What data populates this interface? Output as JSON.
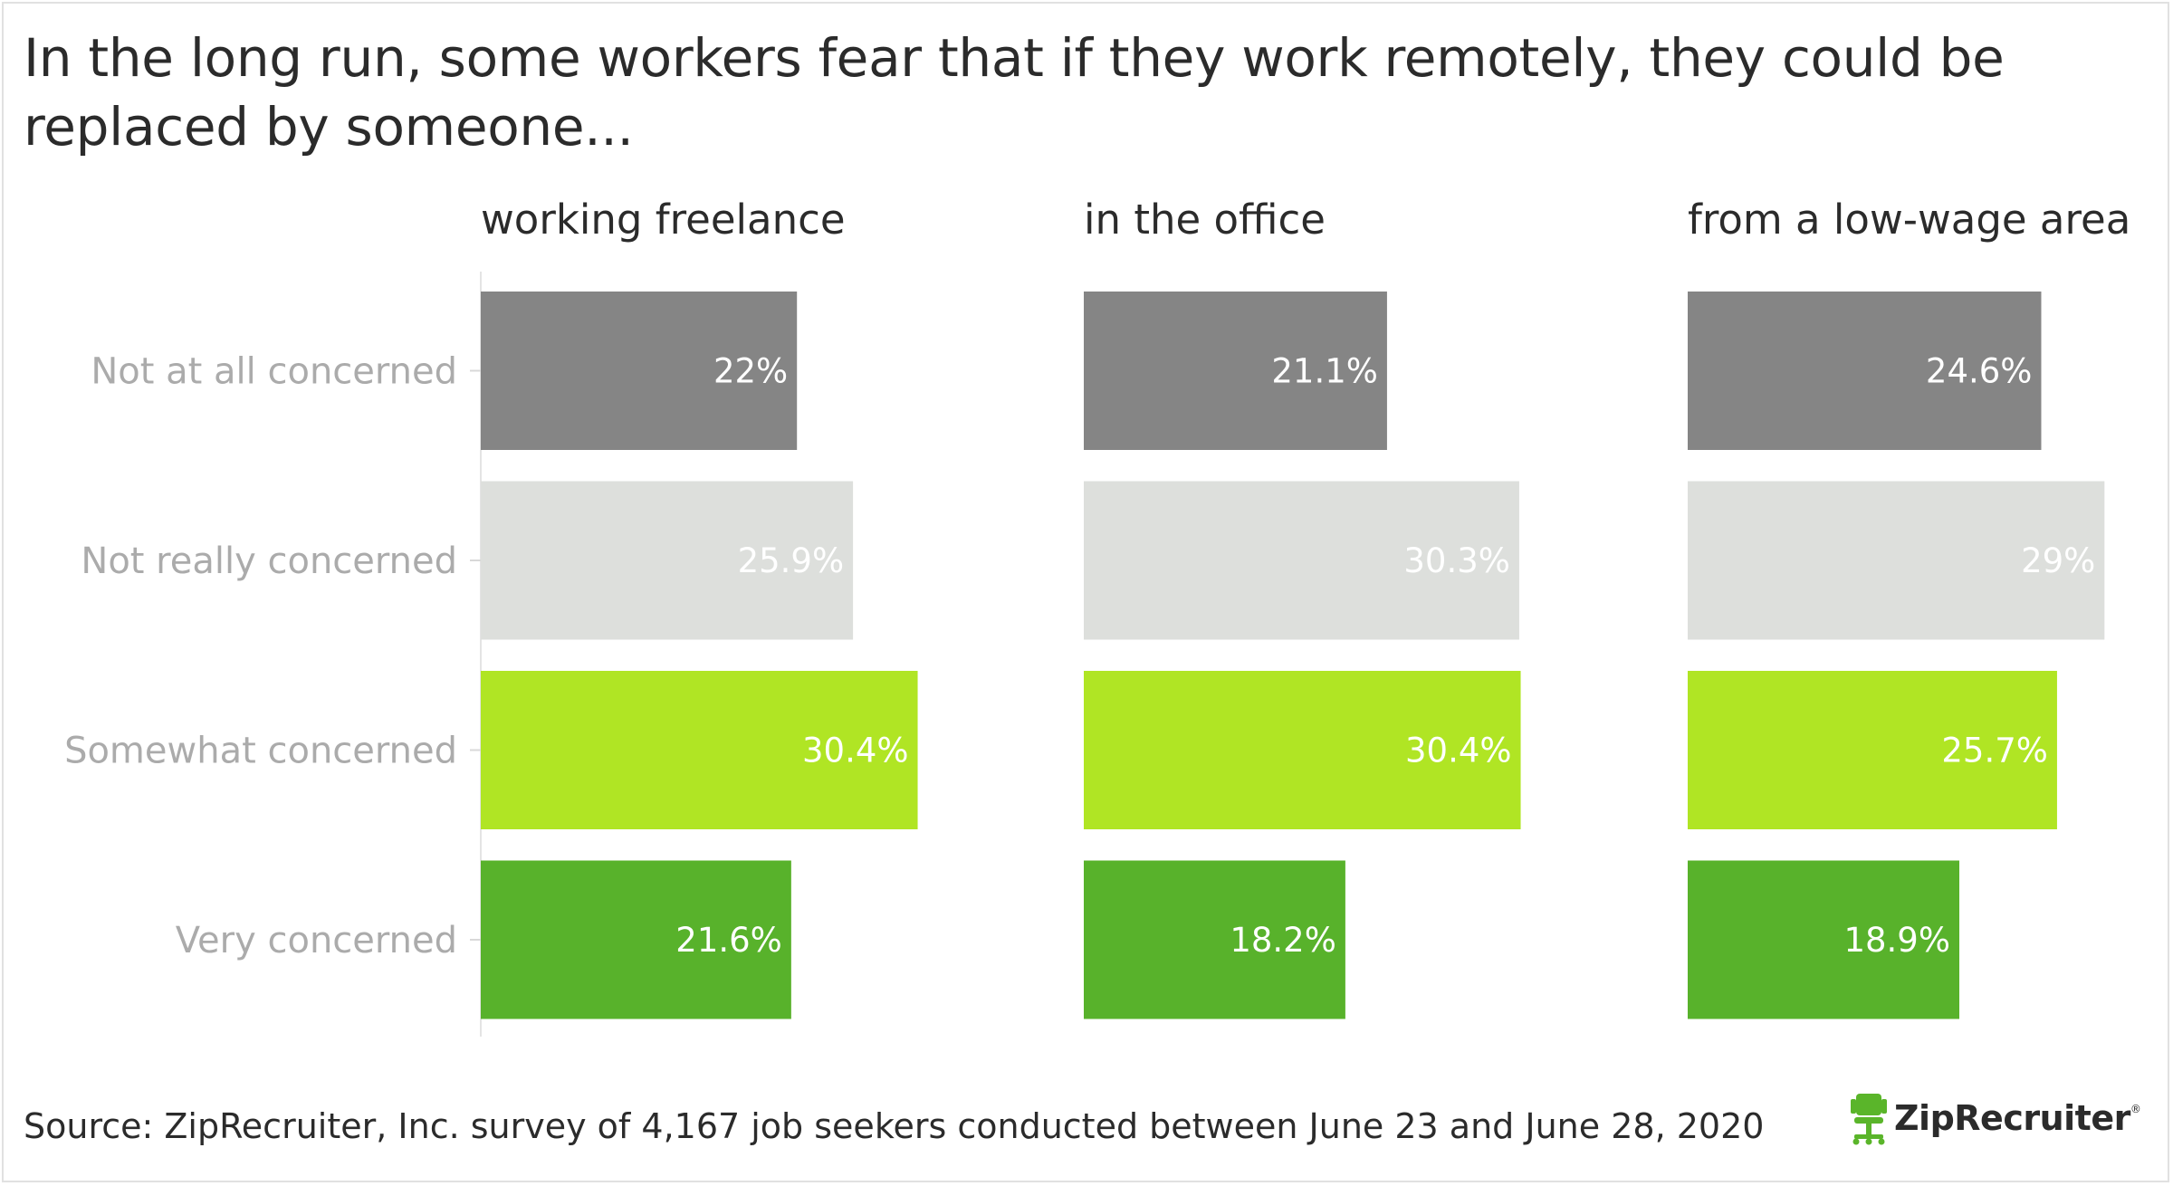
{
  "title": "In the long run, some workers fear that if they work remotely, they could be replaced by someone...",
  "source": "Source: ZipRecruiter, Inc. survey of 4,167 job seekers conducted between June 23 and June 28, 2020",
  "logo": {
    "text": "ZipRecruiter",
    "mark": "®",
    "icon": "chair-icon",
    "icon_color": "#5ab52a"
  },
  "chart_data": {
    "type": "bar",
    "orientation": "horizontal",
    "categories": [
      "Not at all concerned",
      "Not really concerned",
      "Somewhat concerned",
      "Very concerned"
    ],
    "category_colors": [
      "#858585",
      "#dddfdc",
      "#b0e524",
      "#58b22b"
    ],
    "label_colors": [
      "#ffffff",
      "#ffffff",
      "#ffffff",
      "#ffffff"
    ],
    "xlim": [
      0,
      31.5
    ],
    "panels": [
      {
        "name": "working freelance",
        "values": [
          22,
          25.9,
          30.4,
          21.6
        ],
        "labels": [
          "22%",
          "25.9%",
          "30.4%",
          "21.6%"
        ]
      },
      {
        "name": "in the office",
        "values": [
          21.1,
          30.3,
          30.4,
          18.2
        ],
        "labels": [
          "21.1%",
          "30.3%",
          "30.4%",
          "18.2%"
        ]
      },
      {
        "name": "from a low-wage area",
        "values": [
          24.6,
          29,
          25.7,
          18.9
        ],
        "labels": [
          "24.6%",
          "29%",
          "25.7%",
          "18.9%"
        ]
      }
    ]
  }
}
